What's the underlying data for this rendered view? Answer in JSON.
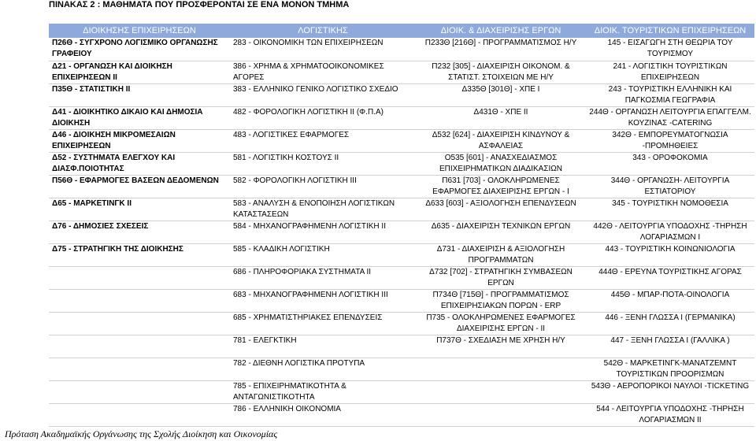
{
  "title": "ΠΙΝΑΚΑΣ 2 : ΜΑΘΗΜΑΤΑ ΠΟΥ ΠΡΟΣΦΕΡΟΝΤΑΙ ΣΕ ΕΝΑ ΜΟΝΟΝ ΤΜΗΜΑ",
  "headers": [
    "ΔΙΟΙΚΗΣΗΣ ΕΠΙΧΕΙΡΗΣΕΩΝ",
    "ΛΟΓΙΣΤΙΚΗΣ",
    "ΔΙΟΙΚ. & ΔΙΑΧΕΙΡΙΣΗΣ ΕΡΓΩΝ",
    "ΔΙΟΙΚ. ΤΟΥΡΙΣΤΙΚΩΝ ΕΠΙΧΕΙΡΗΣΕΩΝ"
  ],
  "rows": [
    [
      "Π26Θ - ΣΥΓΧΡΟΝΟ ΛΟΓΙΣΜΙΚΟ ΟΡΓΑΝΩΣΗΣ ΓΡΑΦΕΙΟΥ",
      "283 - ΟΙΚΟΝΟΜΙΚΗ ΤΩΝ ΕΠΙΧΕΙΡΗΣΕΩΝ",
      "Π233Θ [216Θ] - ΠΡΟΓΡΑΜΜΑΤΙΣΜΟΣ Η/Υ",
      "145 - ΕΙΣΑΓΩΓΗ ΣΤΗ ΘΕΩΡΙΑ ΤΟΥ ΤΟΥΡΙΣΜΟΥ"
    ],
    [
      "Δ21 - ΟΡΓΑΝΩΣΗ ΚΑΙ ΔΙΟΙΚΗΣΗ ΕΠΙΧΕΙΡΗΣΕΩΝ ΙΙ",
      "386 - ΧΡΗΜΑ & ΧΡΗΜΑΤΟΟΙΚΟΝΟΜΙΚΕΣ ΑΓΟΡΕΣ",
      "Π232 [305] - ΔΙΑΧΕΙΡΙΣΗ ΟΙΚΟΝΟΜ. & ΣΤΑΤΙΣΤ. ΣΤΟΙΧΕΙΩΝ ΜΕ Η/Υ",
      "241 - ΛΟΓΙΣΤΙΚΗ ΤΟΥΡΙΣΤΙΚΩΝ ΕΠΙΧΕΙΡΗΣΕΩΝ"
    ],
    [
      "Π35Θ - ΣΤΑΤΙΣΤΙΚΗ ΙΙ",
      "383 - ΕΛΛΗΝΙΚΟ ΓΕΝΙΚΟ ΛΟΓΙΣΤΙΚΟ ΣΧΕΔΙΟ",
      "Δ335Θ [301Θ] - ΧΠΕ Ι",
      "243 - ΤΟΥΡΙΣΤΙΚΗ ΕΛΛΗΝΙΚΗ ΚΑΙ ΠΑΓΚΟΣΜΙΑ ΓΕΩΓΡΑΦΙΑ"
    ],
    [
      "Δ41 - ΔΙΟΙΚΗΤΙΚΟ ΔΙΚΑΙΟ ΚΑΙ ΔΗΜΟΣΙΑ ΔΙΟΙΚΗΣΗ",
      "482 - ΦΟΡΟΛΟΓΙΚΗ ΛΟΓΙΣΤΙΚΗ ΙΙ (Φ.Π.Α)",
      "Δ431Θ - ΧΠΕ ΙΙ",
      "244Θ - ΟΡΓΑΝΩΣΗ ΛΕΙΤΟΥΡΓΙΑ ΕΠΑΓΓΕΛΜ. ΚΟΥΖΙΝΑΣ -CATERING"
    ],
    [
      "Δ46 - ΔΙΟΙΚΗΣΗ ΜΙΚΡΟΜΕΣΑΙΩΝ ΕΠΙΧΕΙΡΗΣΕΩΝ",
      "483 - ΛΟΓΙΣΤΙΚΕΣ ΕΦΑΡΜΟΓΕΣ",
      "Δ532 [624] - ΔΙΑΧΕΙΡΙΣΗ ΚΙΝΔΥΝΟΥ & ΑΣΦΑΛΕΙΑΣ",
      "342Θ - ΕΜΠΟΡΕΥΜΑΤΟΓΝΩΣΙΑ -ΠΡΟΜΗΘΕΙΕΣ"
    ],
    [
      "Δ52 - ΣΥΣΤΗΜΑΤΑ ΕΛΕΓΧΟΥ ΚΑΙ ΔΙΑΣΦ.ΠΟΙΟΤΗΤΑΣ",
      "581 - ΛΟΓΙΣΤΙΚΗ ΚΟΣΤΟΥΣ ΙΙ",
      "Ο535 [601] - ΑΝΑΣΧΕΔΙΑΣΜΟΣ ΕΠΙΧΕΙΡΗΜΑΤΙΚΩΝ ΔΙΑΔΙΚΑΣΙΩΝ",
      "343 - ΟΡΟΦΟΚΟΜΙΑ"
    ],
    [
      "Π56Θ - ΕΦΑΡΜΟΓΕΣ ΒΑΣΕΩΝ ΔΕΔΟΜΕΝΩΝ",
      "582 - ΦΟΡΟΛΟΓΙΚΗ ΛΟΓΙΣΤΙΚΗ ΙΙΙ",
      "Π631 [703] - ΟΛΟΚΛΗΡΩΜΕΝΕΣ ΕΦΑΡΜΟΓΕΣ ΔΙΑΧΕΙΡΙΣΗΣ ΕΡΓΩΝ - Ι",
      "344Θ - ΟΡΓΑΝΩΣΗ- ΛΕΙΤΟΥΡΓΙΑ ΕΣΤΙΑΤΟΡΙΟΥ"
    ],
    [
      "Δ65 - ΜΑΡΚΕΤΙΝΓΚ ΙΙ",
      "583 - ΑΝΑΛΥΣΗ & ΕΝΟΠΟΙΗΣΗ ΛΟΓΙΣΤΙΚΩΝ ΚΑΤΑΣΤΑΣΕΩΝ",
      "Δ633 [603] - ΑΞΙΟΛΟΓΗΣΗ ΕΠΕΝΔΥΣΕΩΝ",
      "345 - ΤΟΥΡΙΣΤΙΚΗ ΝΟΜΟΘΕΣΙΑ"
    ],
    [
      "Δ76 - ΔΗΜΟΣΙΕΣ ΣΧΕΣΕΙΣ",
      "584 - ΜΗΧΑΝΟΓΡΑΦΗΜΕΝΗ ΛΟΓΙΣΤΙΚΗ ΙΙ",
      "Δ635 - ΔΙΑΧΕΙΡΙΣΗ ΤΕΧΝΙΚΩΝ ΕΡΓΩΝ",
      "442Θ - ΛΕΙΤΟΥΡΓΙΑ ΥΠΟΔΟΧΗΣ -ΤΗΡΗΣΗ ΛΟΓΑΡΙΑΣΜΩΝ Ι"
    ],
    [
      "Δ75 - ΣΤΡΑΤΗΓΙΚΗ ΤΗΣ ΔΙΟΙΚΗΣΗΣ",
      "585 - ΚΛΑΔΙΚΗ ΛΟΓΙΣΤΙΚΗ",
      "Δ731 - ΔΙΑΧΕΙΡΙΣΗ & ΑΞΙΟΛΟΓΗΣΗ ΠΡΟΓΡΑΜΜΑΤΩΝ",
      "443 - ΤΟΥΡΙΣΤΙΚΗ ΚΟΙΝΩΝΙΟΛΟΓΙΑ"
    ],
    [
      "",
      "686 - ΠΛΗΡΟΦΟΡΙΑΚΑ ΣΥΣΤΗΜΑΤΑ ΙΙ",
      "Δ732 [702] - ΣΤΡΑΤΗΓΙΚΗ ΣΥΜΒΑΣΕΩΝ ΕΡΓΩΝ",
      "444Θ - ΕΡΕΥΝΑ ΤΟΥΡΙΣΤΙΚΗΣ ΑΓΟΡΑΣ"
    ],
    [
      "",
      "683 - ΜΗΧΑΝΟΓΡΑΦΗΜΕΝΗ ΛΟΓΙΣΤΙΚΗ ΙΙΙ",
      "Π734Θ [715Θ] - ΠΡΟΓΡΑΜΜΑΤΙΣΜΟΣ ΕΠΙΧΕΙΡΗΣΙΑΚΩΝ ΠΟΡΩΝ - ERP",
      "445Θ - ΜΠΑΡ-ΠΟΤΑ-ΟΙΝΟΛΟΓΙΑ"
    ],
    [
      "",
      "685 - ΧΡΗΜΑΤΙΣΤΗΡΙΑΚΕΣ ΕΠΕΝΔΥΣΕΙΣ",
      "Π735 - ΟΛΟΚΛΗΡΩΜΕΝΕΣ ΕΦΑΡΜΟΓΕΣ ΔΙΑΧΕΙΡΙΣΗΣ ΕΡΓΩΝ - ΙΙ",
      "446 - ΞΕΝΗ ΓΛΩΣΣΑ Ι (ΓΕΡΜΑΝΙΚΑ)"
    ],
    [
      "",
      "781 - ΕΛΕΓΚΤΙΚΗ",
      "Π737Θ - ΣΧΕΔΙΑΣΗ ΜΕ ΧΡΗΣΗ Η/Υ",
      "447 - ΞΕΝΗ ΓΛΩΣΣΑ Ι (ΓΑΛΛΙΚΑ )"
    ],
    [
      "",
      "782 - ΔΙΕΘΝΗ ΛΟΓΙΣΤΙΚΑ ΠΡΟΤΥΠΑ",
      "",
      "542Θ - ΜΑΡΚΕΤΙΝΓΚ-ΜΑΝΑΤΖΕΜΝΤ ΤΟΥΡΙΣΤΙΚΩΝ ΠΡΟΟΡΙΣΜΩΝ"
    ],
    [
      "",
      "785 - ΕΠΙΧΕΙΡΗΜΑΤΙΚΟΤΗΤΑ & ΑΝΤΑΓΩΝΙΣΤΙΚΟΤΗΤΑ",
      "",
      "543Θ - ΑΕΡΟΠΟΡΙΚΟΙ ΝΑΥΛΟΙ -TICKETING"
    ],
    [
      "",
      "786 - ΕΛΛΗΝΙΚΗ ΟΙΚΟΝΟΜΙΑ",
      "",
      "544 - ΛΕΙΤΟΥΡΓΙΑ ΥΠΟΔΟΧΗΣ -ΤΗΡΗΣΗ ΛΟΓΑΡΙΑΣΜΩΝ ΙΙ"
    ]
  ],
  "footer": "Πρόταση Ακαδημαϊκής Οργάνωσης της Σχολής Διοίκηση και Οικονομίας"
}
